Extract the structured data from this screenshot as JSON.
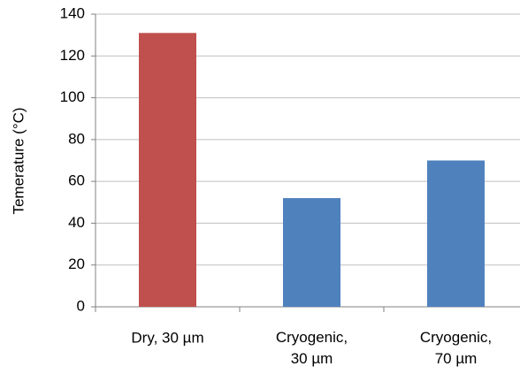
{
  "chart_data": {
    "type": "bar",
    "y_label": "Temerature (°C)",
    "categories": [
      "Dry, 30 µm",
      "Cryogenic, 30 µm",
      "Cryogenic, 70 µm"
    ],
    "values": [
      131,
      52,
      70
    ],
    "colors": [
      "#c0504d",
      "#4f81bd",
      "#4f81bd"
    ],
    "ylim": [
      0,
      140
    ],
    "yticks": [
      0,
      20,
      40,
      60,
      80,
      100,
      120,
      140
    ],
    "grid": true
  }
}
